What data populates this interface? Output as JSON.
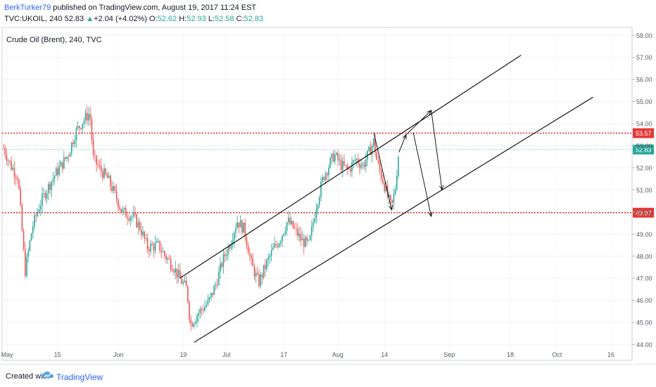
{
  "header": {
    "author": "BerkTurker79",
    "published": "published on TradingView.com, August 19, 2017 11:24 EST",
    "symbol": "TVC:UKOIL, 240",
    "last": "52.83",
    "change": "+2.04 (+4.02%)",
    "o_label": "O:",
    "o_val": "52.62",
    "h_label": "H:",
    "h_val": "52.93",
    "l_label": "L:",
    "l_val": "52.58",
    "c_label": "C:",
    "c_val": "52.83"
  },
  "footer": {
    "created": "Created with",
    "brand": "TradingView"
  },
  "colors": {
    "up": "#26a69a",
    "down": "#ef5350",
    "line": "#000000",
    "level": "#e53935",
    "current": "#26a69a"
  },
  "chart_data": {
    "type": "candlestick",
    "title": "Crude Oil (Brent), 240, TVC",
    "ylim": [
      43.7,
      58.2
    ],
    "y_ticks": [
      "44.00",
      "45.00",
      "46.00",
      "47.00",
      "48.00",
      "49.00",
      "50.00",
      "51.00",
      "52.00",
      "53.00",
      "54.00",
      "55.00",
      "56.00",
      "57.00",
      "58.00"
    ],
    "x_ticks": [
      "May",
      "15",
      "Jun",
      "19",
      "Jul",
      "17",
      "Aug",
      "14",
      "Sep",
      "18",
      "Oct",
      "16"
    ],
    "horizontal_levels": [
      {
        "value": 53.57,
        "label": "53.57",
        "style": "dotted-red"
      },
      {
        "value": 49.97,
        "label": "49.97",
        "style": "dotted-red"
      }
    ],
    "last_price": {
      "value": 52.83,
      "label": "52.83"
    },
    "price_path": [
      [
        "Apr 30",
        52.9
      ],
      [
        "May 2",
        52.1
      ],
      [
        "May 4",
        51.6
      ],
      [
        "May 5",
        49.5
      ],
      [
        "May 6",
        47.3
      ],
      [
        "May 8",
        49.3
      ],
      [
        "May 10",
        50.3
      ],
      [
        "May 12",
        51.0
      ],
      [
        "May 14",
        51.6
      ],
      [
        "May 16",
        52.1
      ],
      [
        "May 18",
        52.6
      ],
      [
        "May 20",
        53.6
      ],
      [
        "May 22",
        54.1
      ],
      [
        "May 24",
        54.5
      ],
      [
        "May 25",
        52.4
      ],
      [
        "May 27",
        51.9
      ],
      [
        "May 29",
        51.5
      ],
      [
        "May 31",
        50.8
      ],
      [
        "Jun 2",
        50.0
      ],
      [
        "Jun 5",
        49.8
      ],
      [
        "Jun 7",
        49.3
      ],
      [
        "Jun 9",
        48.4
      ],
      [
        "Jun 12",
        48.5
      ],
      [
        "Jun 14",
        48.0
      ],
      [
        "Jun 16",
        47.6
      ],
      [
        "Jun 18",
        47.0
      ],
      [
        "Jun 20",
        46.5
      ],
      [
        "Jun 21",
        44.9
      ],
      [
        "Jun 23",
        45.4
      ],
      [
        "Jun 26",
        45.9
      ],
      [
        "Jun 28",
        46.7
      ],
      [
        "Jun 30",
        47.8
      ],
      [
        "Jul 2",
        48.6
      ],
      [
        "Jul 4",
        49.6
      ],
      [
        "Jul 6",
        49.2
      ],
      [
        "Jul 8",
        47.6
      ],
      [
        "Jul 10",
        46.8
      ],
      [
        "Jul 12",
        47.6
      ],
      [
        "Jul 14",
        48.3
      ],
      [
        "Jul 16",
        48.8
      ],
      [
        "Jul 18",
        49.6
      ],
      [
        "Jul 20",
        49.2
      ],
      [
        "Jul 22",
        48.7
      ],
      [
        "Jul 24",
        48.5
      ],
      [
        "Jul 26",
        50.3
      ],
      [
        "Jul 28",
        51.6
      ],
      [
        "Jul 31",
        52.6
      ],
      [
        "Aug 2",
        52.1
      ],
      [
        "Aug 4",
        51.9
      ],
      [
        "Aug 6",
        52.4
      ],
      [
        "Aug 8",
        52.1
      ],
      [
        "Aug 10",
        52.8
      ],
      [
        "Aug 11",
        53.2
      ],
      [
        "Aug 12",
        52.2
      ],
      [
        "Aug 14",
        51.2
      ],
      [
        "Aug 15",
        50.6
      ],
      [
        "Aug 16",
        50.2
      ],
      [
        "Aug 17",
        51.1
      ],
      [
        "Aug 18",
        52.83
      ]
    ],
    "drawings": [
      {
        "name": "channel-upper",
        "from": [
          "Jun 18",
          47.0
        ],
        "to": [
          "Sep 21",
          57.1
        ]
      },
      {
        "name": "channel-lower",
        "from": [
          "Jun 22",
          44.1
        ],
        "to": [
          "Oct 11",
          55.2
        ]
      },
      {
        "name": "arrow-1",
        "from": [
          "Aug 11",
          53.6
        ],
        "to": [
          "Aug 16",
          50.1
        ]
      },
      {
        "name": "arrow-2",
        "from": [
          "Aug 18",
          52.7
        ],
        "to": [
          "Aug 20",
          53.5
        ]
      },
      {
        "name": "arrow-3",
        "from": [
          "Aug 20",
          53.5
        ],
        "to": [
          "Aug 27",
          54.6
        ]
      },
      {
        "name": "arrow-4",
        "from": [
          "Aug 27",
          54.6
        ],
        "to": [
          "Aug 30",
          51.0
        ]
      },
      {
        "name": "arrow-5",
        "from": [
          "Aug 22",
          53.6
        ],
        "to": [
          "Aug 27",
          49.8
        ]
      }
    ]
  }
}
